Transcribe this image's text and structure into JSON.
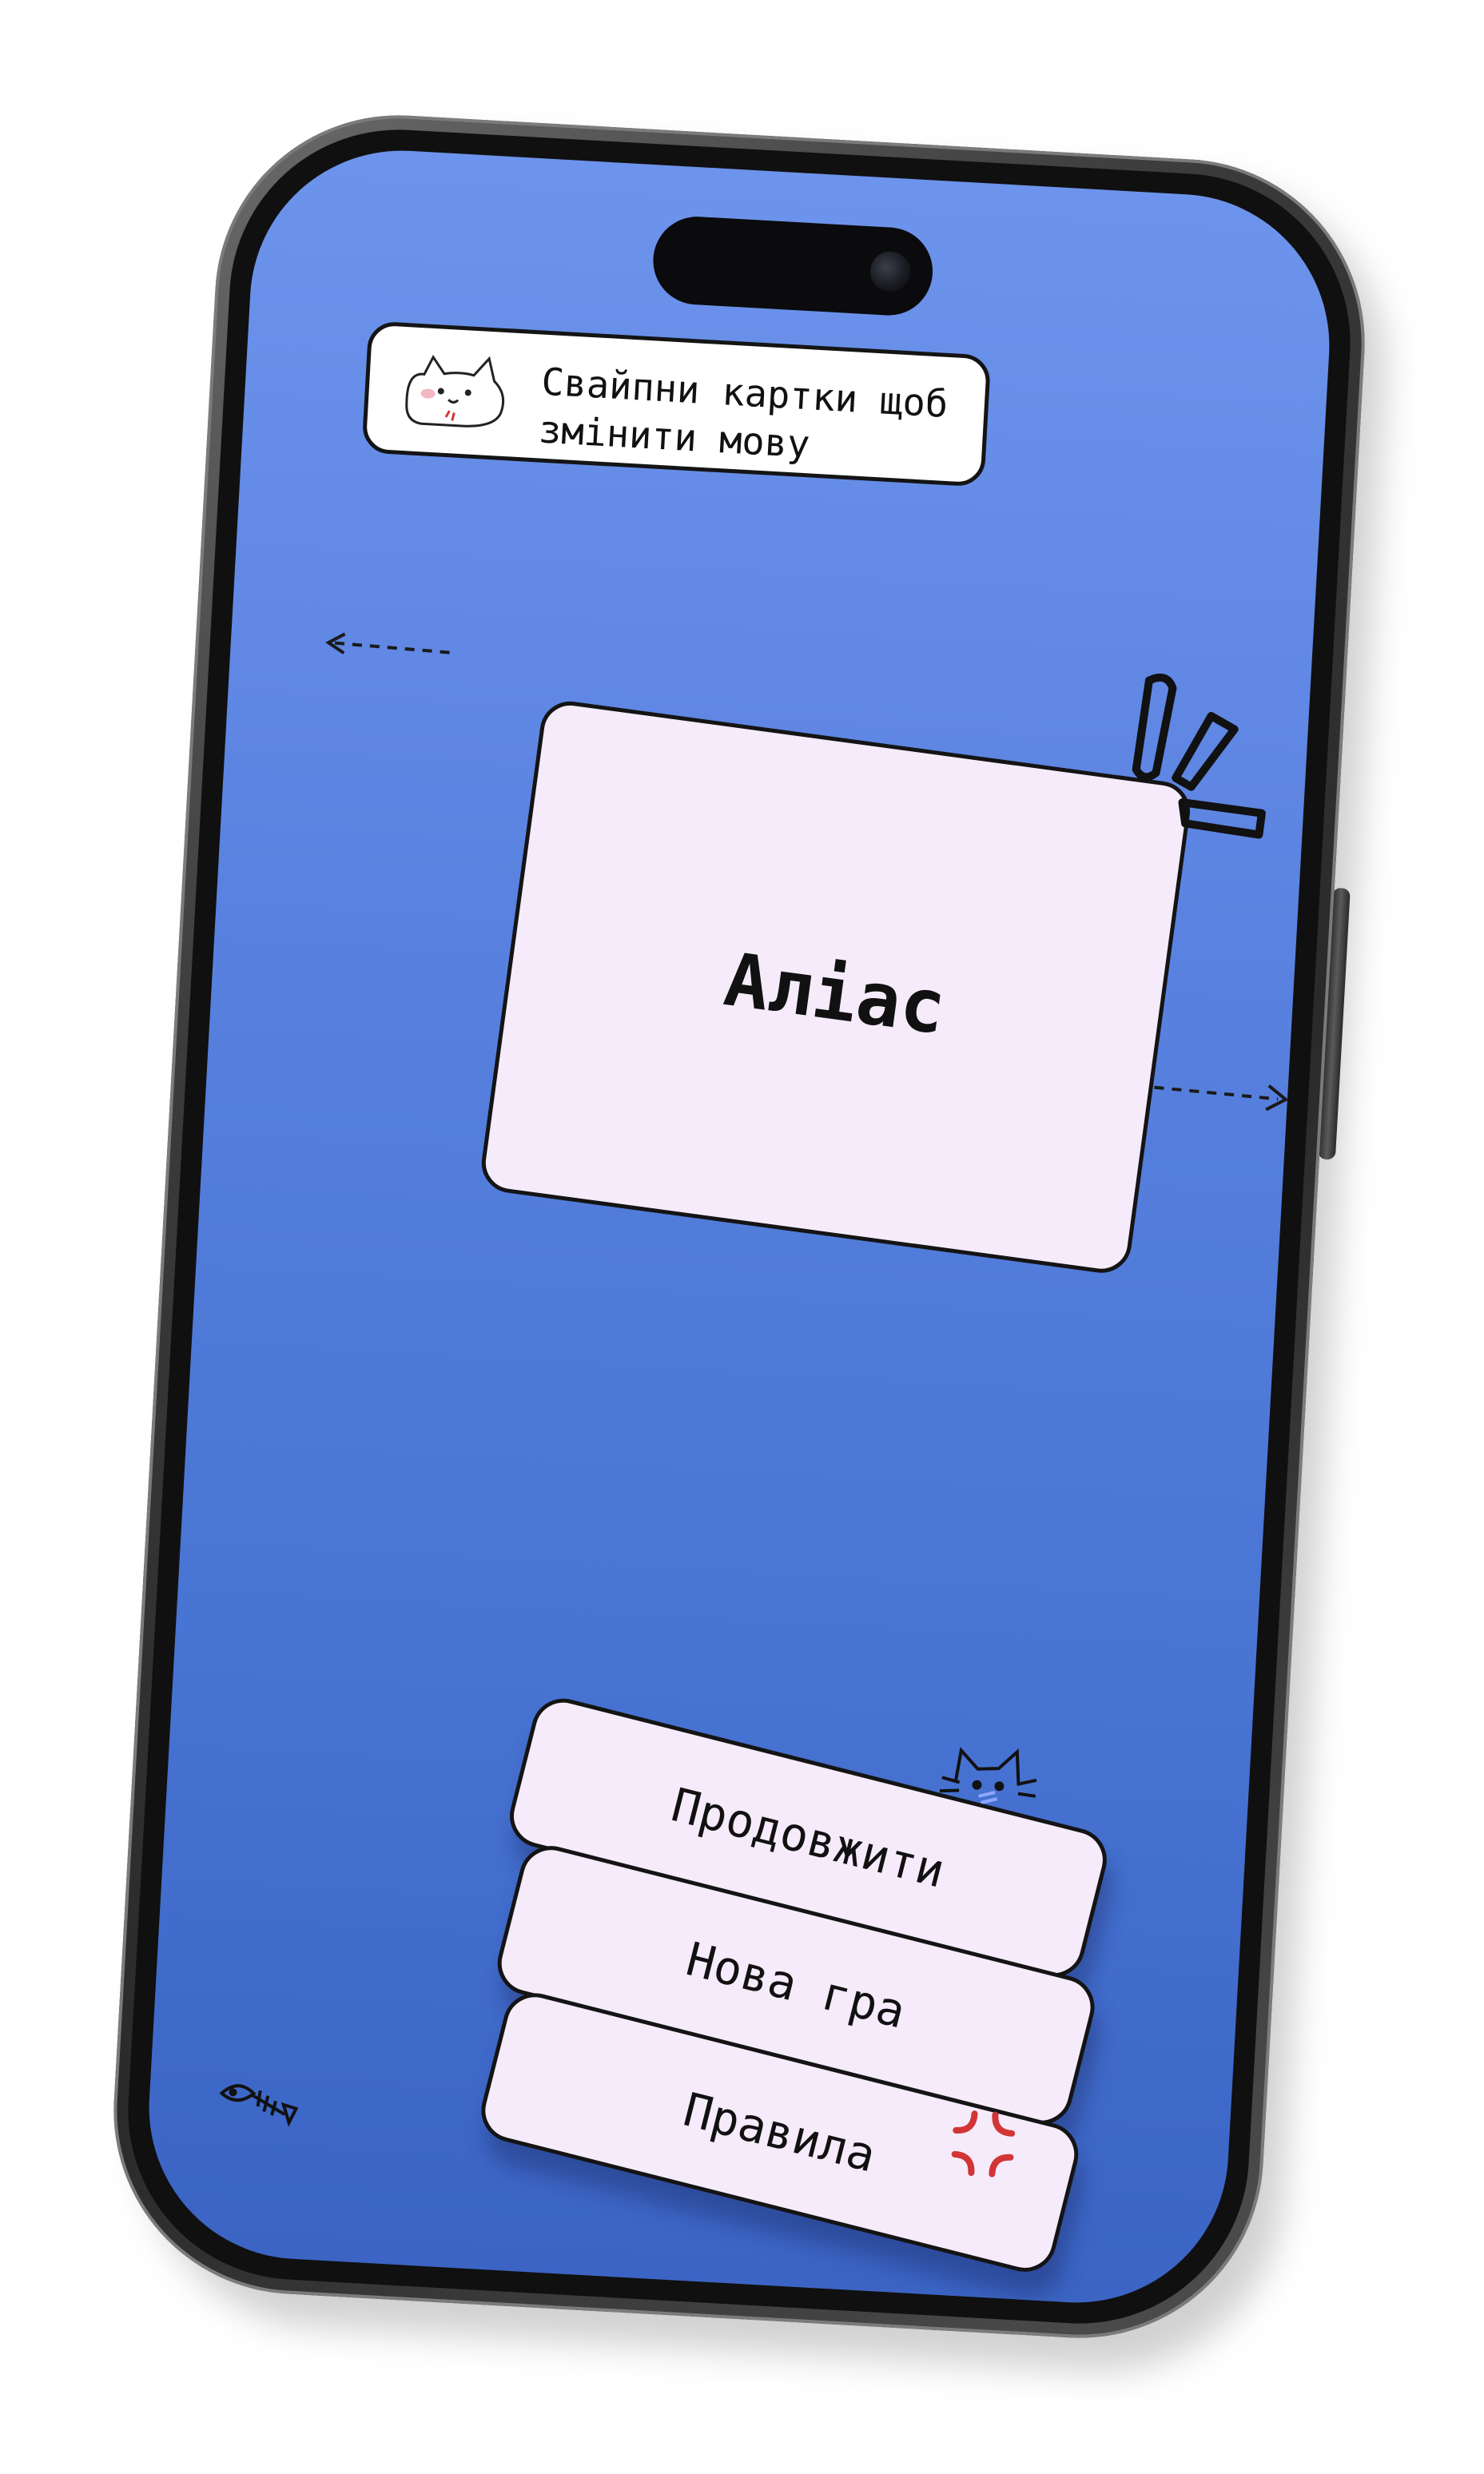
{
  "hint": {
    "line1": "Свайпни картки щоб",
    "line2": "змінити мову"
  },
  "card": {
    "title": "Аліас"
  },
  "buttons": {
    "continue": "Продовжити",
    "new_game": "Нова гра",
    "rules": "Правила"
  },
  "colors": {
    "screen_top": "#6d94ec",
    "screen_bottom": "#3b64c4",
    "card_fill": "#f5ebfb",
    "outline": "#141414"
  },
  "icons": [
    "cat-face-icon",
    "swipe-left-arrow-icon",
    "swipe-right-arrow-icon",
    "exclamation-burst-icon",
    "cat-doodle-icon",
    "anger-mark-icon",
    "fish-skeleton-icon"
  ]
}
